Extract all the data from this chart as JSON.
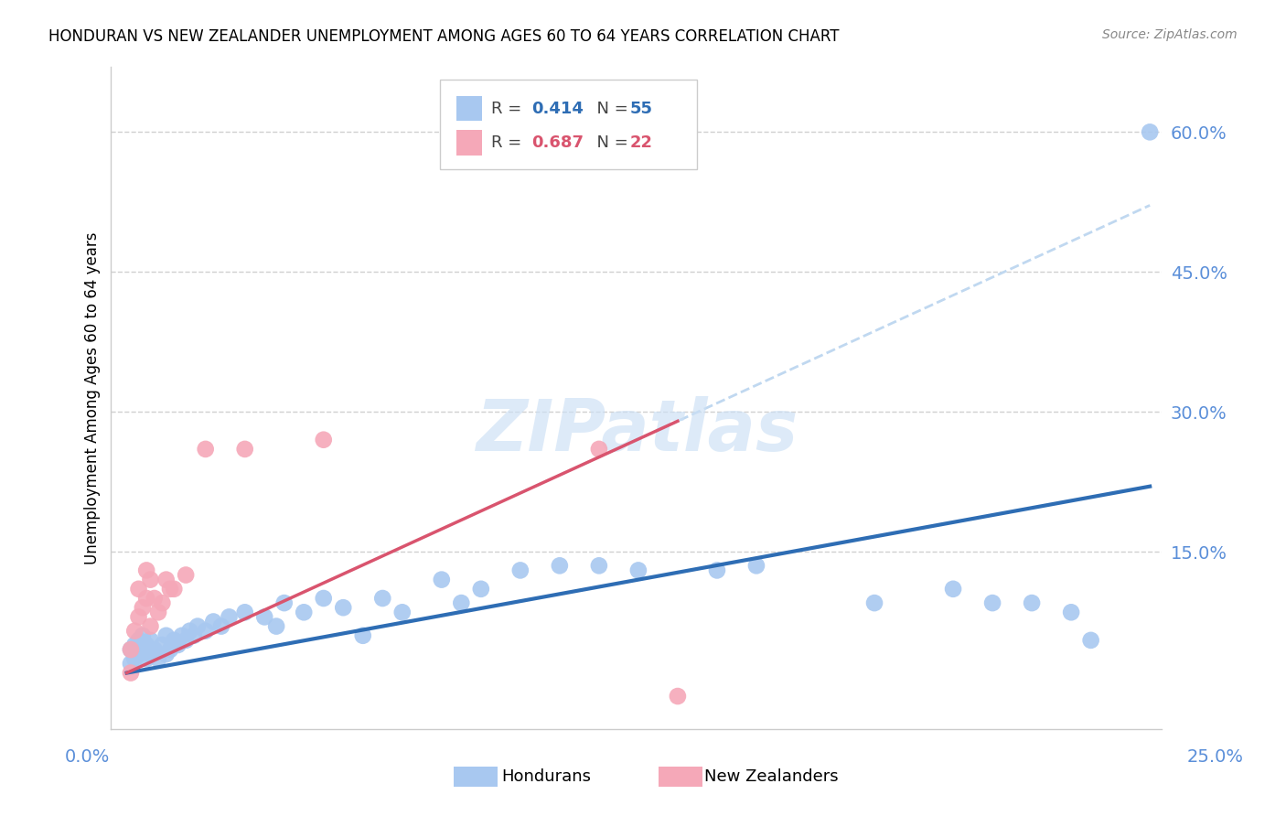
{
  "title": "HONDURAN VS NEW ZEALANDER UNEMPLOYMENT AMONG AGES 60 TO 64 YEARS CORRELATION CHART",
  "source": "Source: ZipAtlas.com",
  "ylabel": "Unemployment Among Ages 60 to 64 years",
  "legend_hondurans": "Hondurans",
  "legend_nz": "New Zealanders",
  "legend_r_hondurans": "0.414",
  "legend_n_hondurans": "55",
  "legend_r_nz": "0.687",
  "legend_n_nz": "22",
  "blue_color": "#a8c8f0",
  "pink_color": "#f5a8b8",
  "blue_line_color": "#2e6db4",
  "pink_line_color": "#d9546e",
  "dashed_line_color": "#c0d8f0",
  "ytick_color": "#5b8fd9",
  "xtick_color": "#5b8fd9",
  "xlim": [
    -0.004,
    0.263
  ],
  "ylim": [
    -0.04,
    0.67
  ],
  "hon_x": [
    0.001,
    0.001,
    0.002,
    0.002,
    0.003,
    0.003,
    0.004,
    0.004,
    0.005,
    0.005,
    0.006,
    0.006,
    0.007,
    0.008,
    0.009,
    0.01,
    0.01,
    0.011,
    0.012,
    0.013,
    0.014,
    0.015,
    0.016,
    0.017,
    0.018,
    0.02,
    0.022,
    0.024,
    0.026,
    0.03,
    0.035,
    0.038,
    0.04,
    0.045,
    0.05,
    0.055,
    0.06,
    0.065,
    0.07,
    0.08,
    0.085,
    0.09,
    0.1,
    0.11,
    0.12,
    0.13,
    0.15,
    0.16,
    0.19,
    0.21,
    0.22,
    0.23,
    0.24,
    0.245,
    0.26
  ],
  "hon_y": [
    0.03,
    0.045,
    0.035,
    0.05,
    0.04,
    0.055,
    0.045,
    0.06,
    0.035,
    0.05,
    0.04,
    0.055,
    0.045,
    0.035,
    0.05,
    0.04,
    0.06,
    0.045,
    0.055,
    0.05,
    0.06,
    0.055,
    0.065,
    0.06,
    0.07,
    0.065,
    0.075,
    0.07,
    0.08,
    0.085,
    0.08,
    0.07,
    0.095,
    0.085,
    0.1,
    0.09,
    0.06,
    0.1,
    0.085,
    0.12,
    0.095,
    0.11,
    0.13,
    0.135,
    0.135,
    0.13,
    0.13,
    0.135,
    0.095,
    0.11,
    0.095,
    0.095,
    0.085,
    0.055,
    0.6
  ],
  "nz_x": [
    0.001,
    0.001,
    0.002,
    0.003,
    0.003,
    0.004,
    0.005,
    0.005,
    0.006,
    0.006,
    0.007,
    0.008,
    0.009,
    0.01,
    0.011,
    0.012,
    0.015,
    0.02,
    0.03,
    0.05,
    0.12,
    0.14
  ],
  "nz_y": [
    0.02,
    0.045,
    0.065,
    0.08,
    0.11,
    0.09,
    0.1,
    0.13,
    0.07,
    0.12,
    0.1,
    0.085,
    0.095,
    0.12,
    0.11,
    0.11,
    0.125,
    0.26,
    0.26,
    0.27,
    0.26,
    -0.005
  ],
  "blue_line_x0": 0.0,
  "blue_line_x1": 0.26,
  "blue_line_y0": 0.02,
  "blue_line_y1": 0.22,
  "pink_line_x0": 0.0,
  "pink_line_x1": 0.14,
  "pink_line_y0": 0.02,
  "pink_line_y1": 0.29,
  "dashed_line_x0": 0.1,
  "dashed_line_x1": 0.26,
  "ytick_vals": [
    0.15,
    0.3,
    0.45,
    0.6
  ],
  "ytick_labels": [
    "15.0%",
    "30.0%",
    "45.0%",
    "60.0%"
  ]
}
